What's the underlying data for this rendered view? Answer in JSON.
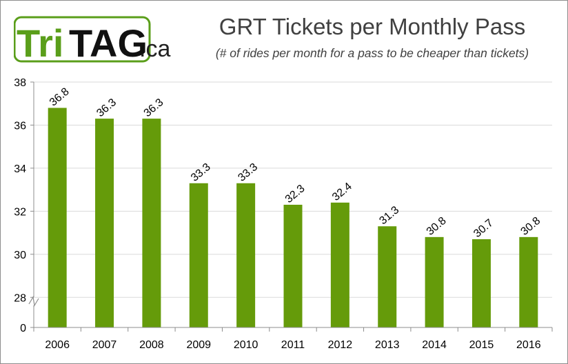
{
  "logo": {
    "text_tri": "Tri",
    "text_tag": "TAG",
    "text_ca": ".ca"
  },
  "colors": {
    "bar": "#659B0A",
    "grid": "#d9d9d9",
    "axis": "#8c8c8c",
    "logo_green": "#5a9e1a"
  },
  "chart_data": {
    "type": "bar",
    "title": "GRT Tickets per Monthly Pass",
    "subtitle": "(# of rides per month for a pass to be cheaper than tickets)",
    "categories": [
      "2006",
      "2007",
      "2008",
      "2009",
      "2010",
      "2011",
      "2012",
      "2013",
      "2014",
      "2015",
      "2016"
    ],
    "values": [
      36.8,
      36.3,
      36.3,
      33.3,
      33.3,
      32.3,
      32.4,
      31.3,
      30.8,
      30.7,
      30.8
    ],
    "data_labels": [
      "36.8",
      "36.3",
      "36.3",
      "33.3",
      "33.3",
      "32.3",
      "32.4",
      "31.3",
      "30.8",
      "30.7",
      "30.8"
    ],
    "y_ticks": [
      0,
      28,
      30,
      32,
      34,
      36,
      38
    ],
    "y_tick_labels": [
      "0",
      "28",
      "30",
      "32",
      "34",
      "36",
      "38"
    ],
    "ylim": [
      26.6,
      38
    ],
    "axis_break": true,
    "grid": true,
    "xlabel": "",
    "ylabel": ""
  }
}
